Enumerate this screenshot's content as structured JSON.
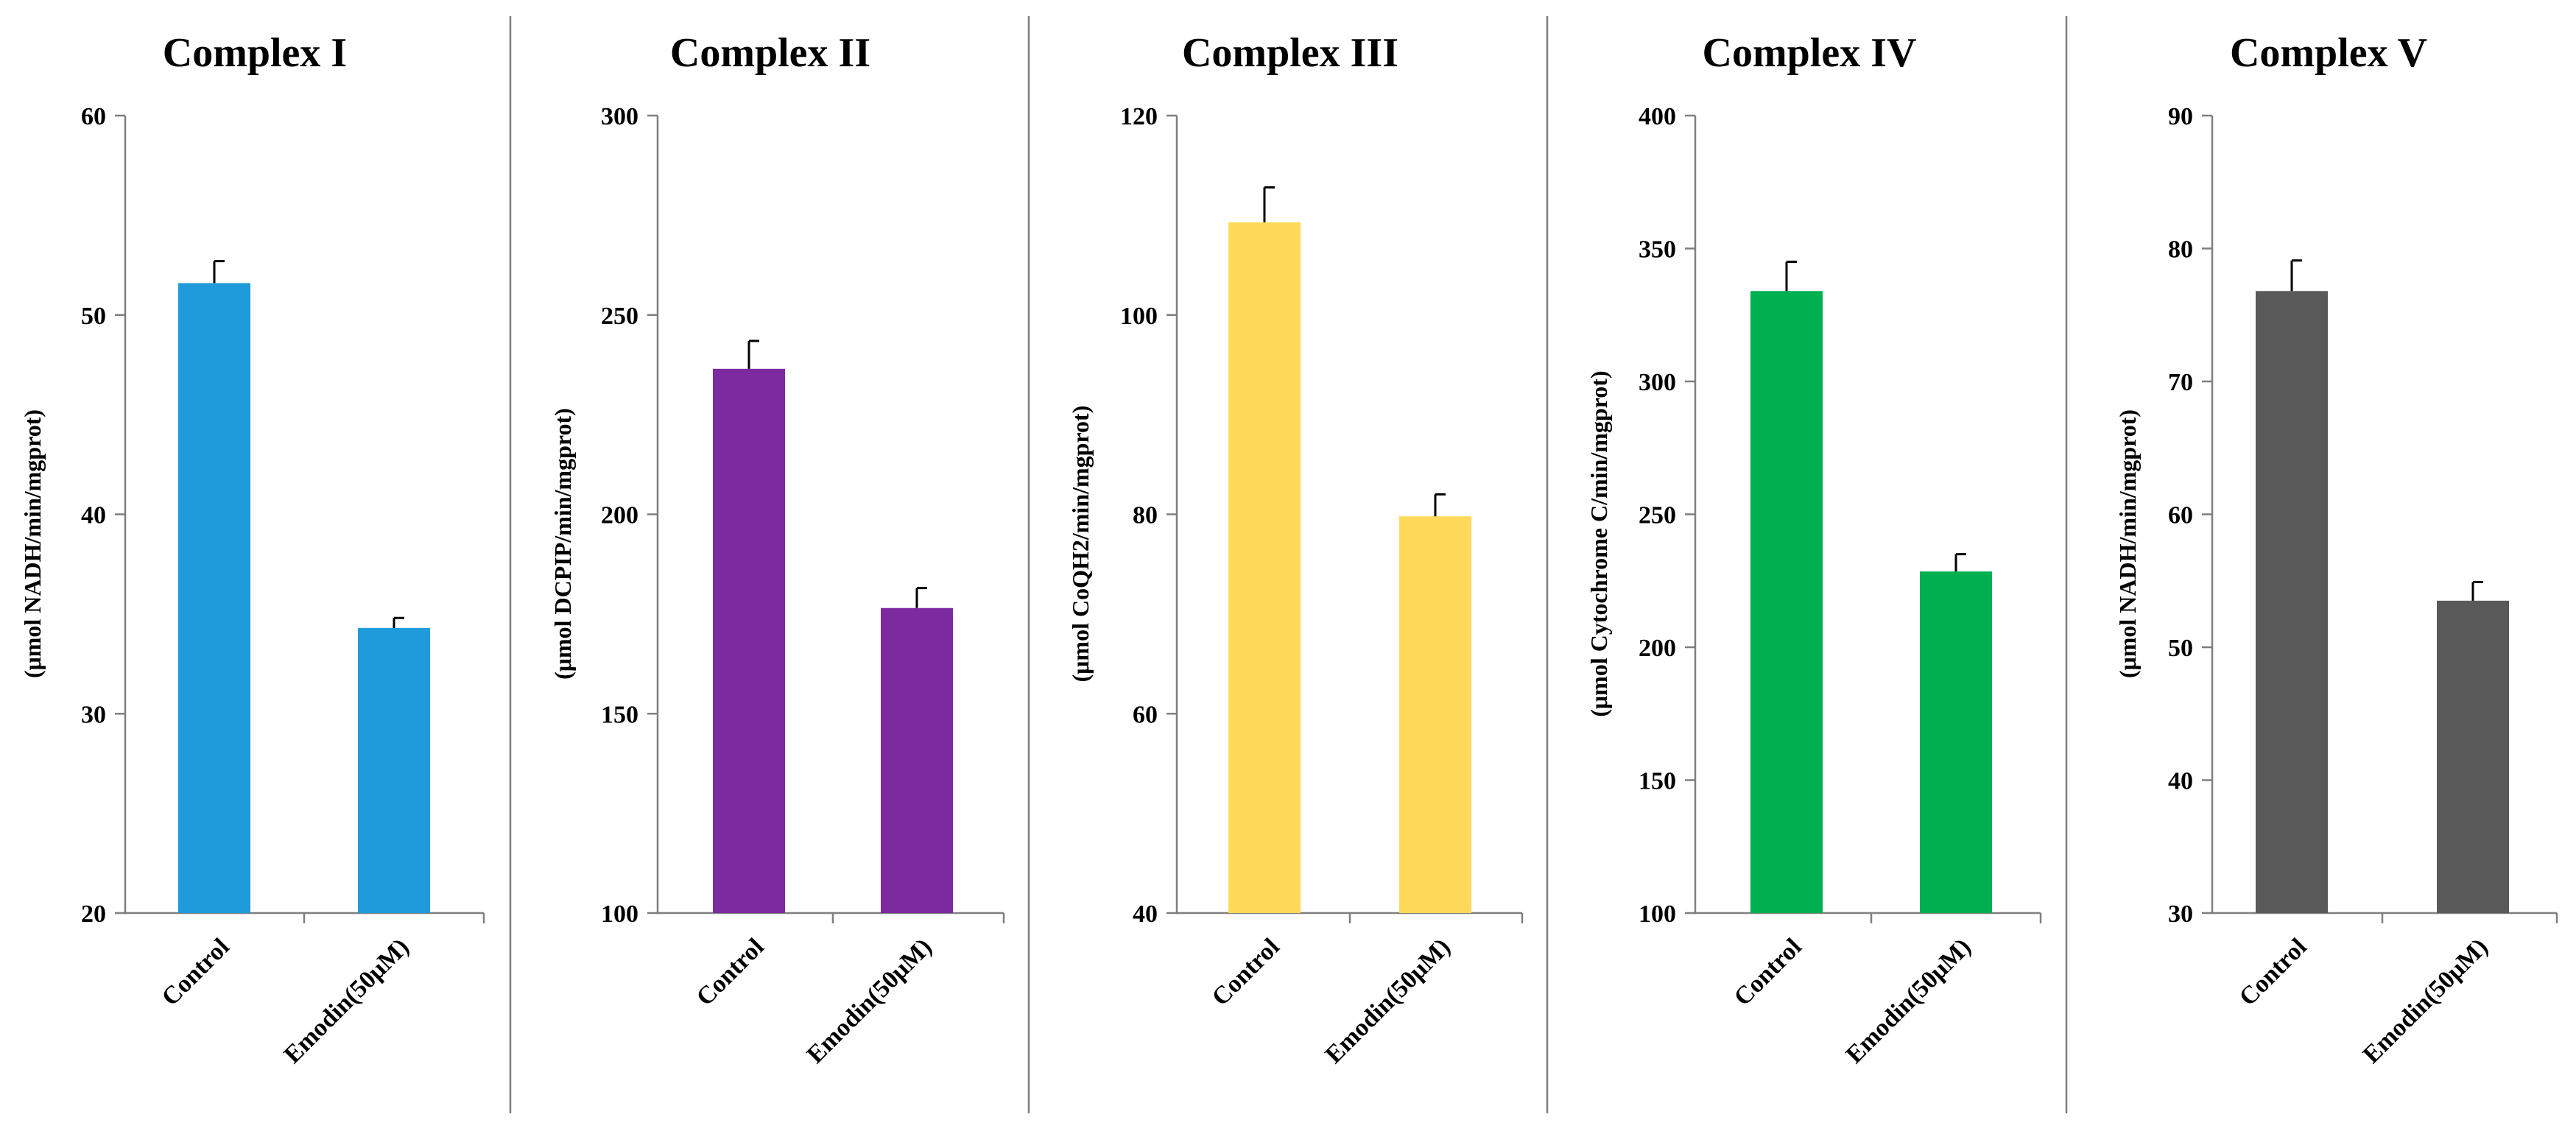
{
  "chart_data": [
    {
      "type": "bar",
      "title": "Complex I",
      "ylabel": "(μmol NADH/min/mgprot)",
      "categories": [
        "Control",
        "Emodin(50μM)"
      ],
      "values": [
        51.6,
        34.3
      ],
      "errors": [
        1.1,
        0.5
      ],
      "ylim": [
        20,
        60
      ],
      "yticks": [
        20,
        30,
        40,
        50,
        60
      ],
      "color": "#1F9BDB"
    },
    {
      "type": "bar",
      "title": "Complex II",
      "ylabel": "(μmol DCPIP/min/mgprot)",
      "categories": [
        "Control",
        "Emodin(50μM)"
      ],
      "values": [
        236.5,
        176.5
      ],
      "errors": [
        7,
        5
      ],
      "ylim": [
        100,
        300
      ],
      "yticks": [
        100,
        150,
        200,
        250,
        300
      ],
      "color": "#7B2AA0"
    },
    {
      "type": "bar",
      "title": "Complex III",
      "ylabel": "(μmol CoQH2/min/mgprot)",
      "categories": [
        "Control",
        "Emodin(50μM)"
      ],
      "values": [
        109.3,
        79.8
      ],
      "errors": [
        3.5,
        2.2
      ],
      "ylim": [
        40,
        120
      ],
      "yticks": [
        40,
        60,
        80,
        100,
        120
      ],
      "color": "#FFD95A"
    },
    {
      "type": "bar",
      "title": "Complex IV",
      "ylabel": "(μmol Cytochrome C/min/mgprot)",
      "categories": [
        "Control",
        "Emodin(50μM)"
      ],
      "values": [
        334,
        228.5
      ],
      "errors": [
        11,
        6.5
      ],
      "ylim": [
        100,
        400
      ],
      "yticks": [
        100,
        150,
        200,
        250,
        300,
        350,
        400
      ],
      "color": "#00B050"
    },
    {
      "type": "bar",
      "title": "Complex V",
      "ylabel": "(μmol NADH/min/mgprot)",
      "categories": [
        "Control",
        "Emodin(50μM)"
      ],
      "values": [
        76.8,
        53.5
      ],
      "errors": [
        2.3,
        1.4
      ],
      "ylim": [
        30,
        90
      ],
      "yticks": [
        30,
        40,
        50,
        60,
        70,
        80,
        90
      ],
      "color": "#595959"
    }
  ]
}
